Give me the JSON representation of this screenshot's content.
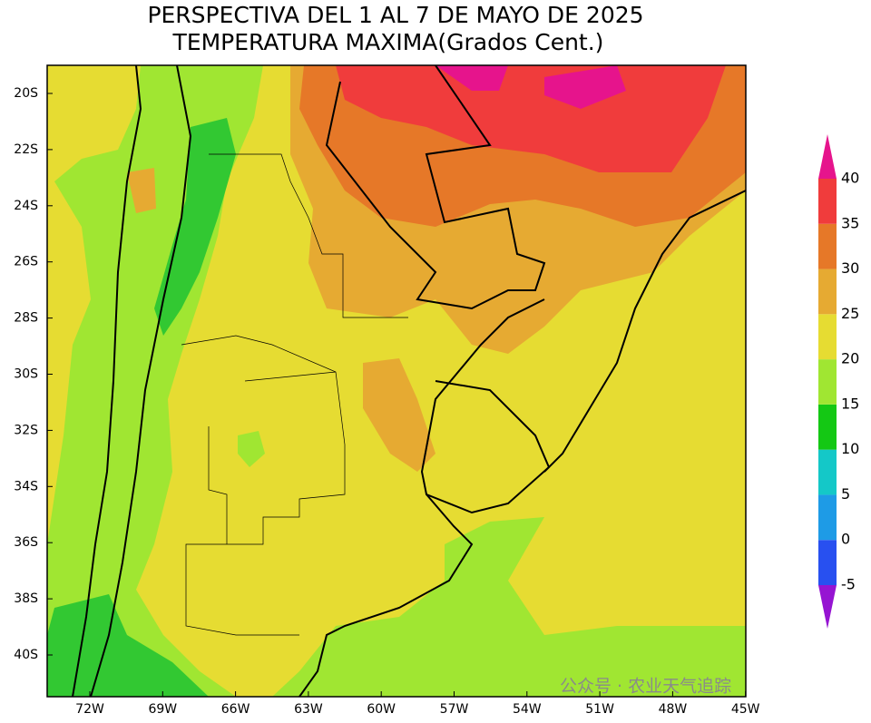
{
  "header": {
    "title": "PERSPECTIVA DEL 1 AL 7 DE MAYO DE 2025",
    "subtitle": "TEMPERATURA MAXIMA(Grados Cent.)"
  },
  "map": {
    "lat_labels": [
      "20S",
      "22S",
      "24S",
      "26S",
      "28S",
      "30S",
      "32S",
      "34S",
      "36S",
      "38S",
      "40S"
    ],
    "lon_labels": [
      "72W",
      "69W",
      "66W",
      "63W",
      "60W",
      "57W",
      "54W",
      "51W",
      "48W",
      "45W"
    ]
  },
  "colorbar": {
    "levels": [
      -5,
      0,
      5,
      10,
      15,
      20,
      25,
      30,
      35,
      40
    ],
    "colors": [
      "#9614d2",
      "#2850f0",
      "#1e9be6",
      "#14c8c8",
      "#14c814",
      "#a0e632",
      "#e6dc32",
      "#e6aa32",
      "#e67828",
      "#f03c3c",
      "#e6148c"
    ]
  },
  "watermark": "公众号 · 农业天气追踪"
}
